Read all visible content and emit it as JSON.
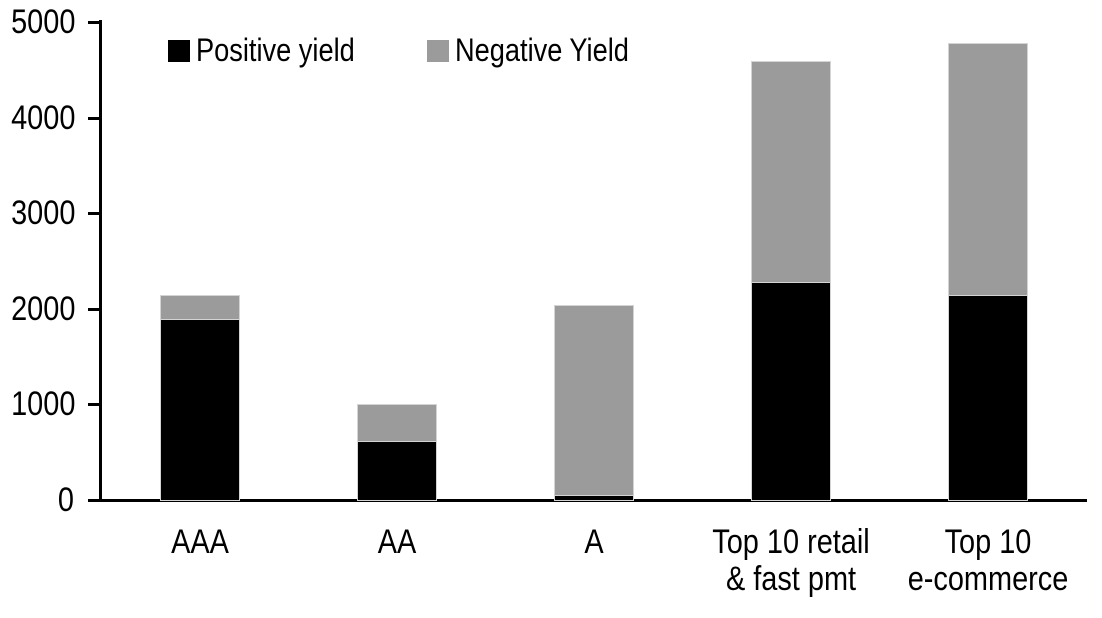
{
  "chart_data": {
    "type": "bar",
    "stacked": true,
    "title": "",
    "xlabel": "",
    "ylabel": "",
    "categories": [
      "AAA",
      "AA",
      "A",
      "Top 10 retail\n& fast pmt",
      "Top 10\ne-commerce"
    ],
    "series": [
      {
        "name": "Positive yield",
        "color": "#000000",
        "values": [
          1890,
          620,
          50,
          2280,
          2140
        ]
      },
      {
        "name": "Negative Yield",
        "color": "#9b9b9b",
        "values": [
          240,
          370,
          1980,
          2300,
          2630
        ]
      }
    ],
    "stack_totals": [
      2130,
      990,
      2030,
      4580,
      4770
    ],
    "ylim": [
      0,
      5000
    ],
    "yticks": [
      0,
      1000,
      2000,
      3000,
      4000,
      5000
    ],
    "legend_position": "top-left",
    "grid": false,
    "axis_color": "#000000",
    "background_color": "#ffffff"
  }
}
